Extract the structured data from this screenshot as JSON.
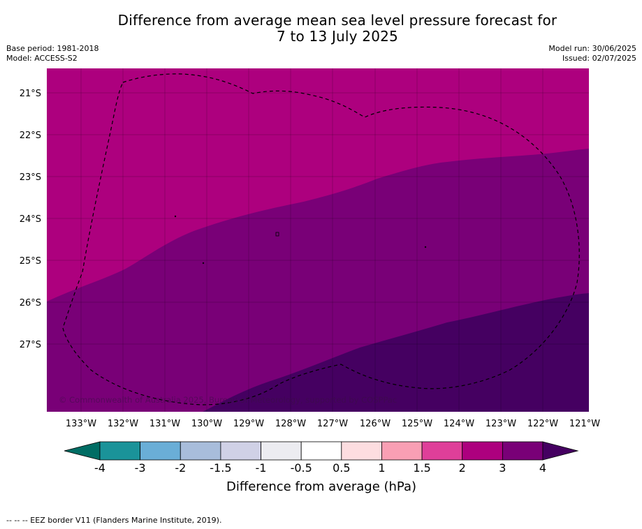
{
  "title": {
    "line1": "Difference from average mean sea level pressure forecast for",
    "line2": "7 to 13 July 2025"
  },
  "meta_left": {
    "base_period": "Base period: 1981-2018",
    "model": "Model: ACCESS-S2"
  },
  "meta_right": {
    "model_run": "Model run: 30/06/2025",
    "issued": "Issued: 02/07/2025"
  },
  "map": {
    "lat_labels": [
      "21°S",
      "22°S",
      "23°S",
      "24°S",
      "25°S",
      "26°S",
      "27°S"
    ],
    "lon_labels": [
      "133°W",
      "132°W",
      "131°W",
      "130°W",
      "129°W",
      "128°W",
      "127°W",
      "126°W",
      "125°W",
      "124°W",
      "123°W",
      "122°W",
      "121°W"
    ],
    "copyright": "© Commonwealth of Australia 2025, Bureau of Meteorology, supported by COSPPac",
    "colors": {
      "band_2_3": "#ad007e",
      "band_3_4": "#790077",
      "band_gt4": "#450061"
    }
  },
  "colorbar": {
    "ticks": [
      "-4",
      "-3",
      "-2",
      "-1.5",
      "-1",
      "-0.5",
      "0.5",
      "1",
      "1.5",
      "2",
      "3",
      "4"
    ],
    "colors": [
      "#1a9399",
      "#6aaed7",
      "#a8bddb",
      "#d0d1e6",
      "#ececf1",
      "#ffffff",
      "#fddde0",
      "#f99fb4",
      "#df3f99",
      "#ad007e",
      "#790077"
    ],
    "under_color": "#006d64",
    "over_color": "#450061",
    "label": "Difference from average (hPa)"
  },
  "footnote": "-- -- -- EEZ border V11 (Flanders Marine Institute, 2019)."
}
